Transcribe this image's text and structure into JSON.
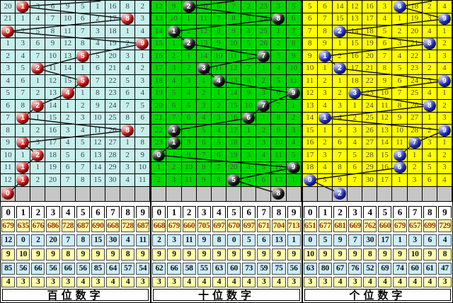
{
  "colors": {
    "panel_cyan": "#c7f0ec",
    "panel_green": "#00d800",
    "panel_yellow": "#ffff00",
    "gray_row": "#c6c6c6",
    "ball_red": "#e11212",
    "ball_black": "#161616",
    "ball_blue": "#2230cf",
    "stat_yellow": "#ffffaa",
    "stat_blue": "#cceeff",
    "stat_row1_text": "#993300",
    "stat_text": "#111111",
    "trend_line": "#151515",
    "grid_line": "#000000"
  },
  "chart_data": {
    "type": "table",
    "description": "Lottery digit trend chart: three panels (hundreds / tens / units digit). Each row shows miss counts per digit 0-9; the drawn digit is shown as a colored ball; a polyline connects drawn digits. Gray row holds the pending ball; below are per-digit statistic rows.",
    "columns": [
      "0",
      "1",
      "2",
      "3",
      "4",
      "5",
      "6",
      "7",
      "8",
      "9"
    ],
    "panels": [
      {
        "label": "百位数字",
        "bg": "panel_cyan",
        "ball": "ball_red",
        "num_color": "#3b4050",
        "rows": [
          {
            "v": [
              "20",
              "1",
              "3",
              "6",
              "9",
              "5",
              "1",
              "16",
              "8",
              "2"
            ],
            "ball": 1
          },
          {
            "v": [
              "21",
              "1",
              "4",
              "7",
              "10",
              "6",
              "2",
              "17",
              "8",
              "3"
            ],
            "ball": 8
          },
          {
            "v": [
              "0",
              "2",
              "5",
              "8",
              "11",
              "7",
              "3",
              "18",
              "1",
              "4"
            ],
            "ball": 0
          },
          {
            "v": [
              "1",
              "3",
              "6",
              "9",
              "12",
              "8",
              "4",
              "19",
              "2",
              "9"
            ],
            "ball": 9
          },
          {
            "v": [
              "2",
              "4",
              "7",
              "10",
              "13",
              "5",
              "5",
              "20",
              "3",
              "1"
            ],
            "ball": 5
          },
          {
            "v": [
              "3",
              "5",
              "2",
              "11",
              "14",
              "1",
              "6",
              "21",
              "4",
              "2"
            ],
            "ball": 2
          },
          {
            "v": [
              "4",
              "6",
              "1",
              "12",
              "15",
              "5",
              "7",
              "22",
              "5",
              "3"
            ],
            "ball": 5
          },
          {
            "v": [
              "5",
              "7",
              "2",
              "13",
              "4",
              "1",
              "8",
              "23",
              "6",
              "4"
            ],
            "ball": 4
          },
          {
            "v": [
              "6",
              "8",
              "2",
              "14",
              "1",
              "2",
              "9",
              "24",
              "7",
              "5"
            ],
            "ball": 2
          },
          {
            "v": [
              "7",
              "1",
              "1",
              "15",
              "2",
              "3",
              "10",
              "25",
              "8",
              "6"
            ],
            "ball": 1
          },
          {
            "v": [
              "8",
              "1",
              "2",
              "16",
              "3",
              "4",
              "11",
              "26",
              "8",
              "7"
            ],
            "ball": 8
          },
          {
            "v": [
              "9",
              "1",
              "3",
              "17",
              "4",
              "5",
              "12",
              "27",
              "1",
              "8"
            ],
            "ball": 1
          },
          {
            "v": [
              "10",
              "1",
              "2",
              "18",
              "5",
              "6",
              "13",
              "28",
              "2",
              "9"
            ],
            "ball": 2
          },
          {
            "v": [
              "11",
              "1",
              "1",
              "19",
              "6",
              "7",
              "14",
              "29",
              "3",
              "10"
            ],
            "ball": 1
          },
          {
            "v": [
              "12",
              "1",
              "2",
              "20",
              "7",
              "8",
              "15",
              "30",
              "4",
              "11"
            ],
            "ball": 1
          }
        ],
        "pending_ball": 0,
        "stats": [
          [
            "679",
            "635",
            "676",
            "686",
            "728",
            "687",
            "690",
            "668",
            "728",
            "687"
          ],
          [
            "12",
            "0",
            "2",
            "20",
            "7",
            "8",
            "15",
            "30",
            "4",
            "11"
          ],
          [
            "9",
            "10",
            "9",
            "9",
            "8",
            "9",
            "9",
            "9",
            "8",
            "9"
          ],
          [
            "85",
            "56",
            "66",
            "56",
            "66",
            "56",
            "85",
            "64",
            "57",
            "54"
          ],
          [
            "4",
            "3",
            "3",
            "3",
            "3",
            "4",
            "3",
            "4",
            "4",
            "3"
          ]
        ]
      },
      {
        "label": "十位数字",
        "bg": "panel_green",
        "ball": "ball_black",
        "num_color": "#3f5a3f",
        "rows": [
          {
            "v": [
              "12",
              "9",
              "2",
              "10",
              "6",
              "7",
              "2",
              "23",
              "3",
              "5"
            ],
            "ball": 2
          },
          {
            "v": [
              "13",
              "10",
              "1",
              "11",
              "7",
              "8",
              "3",
              "24",
              "8",
              "6"
            ],
            "ball": 8
          },
          {
            "v": [
              "14",
              "1",
              "2",
              "12",
              "8",
              "9",
              "4",
              "25",
              "1",
              "7"
            ],
            "ball": 1
          },
          {
            "v": [
              "15",
              "1",
              "2",
              "13",
              "9",
              "10",
              "5",
              "26",
              "2",
              "8"
            ],
            "ball": 2
          },
          {
            "v": [
              "16",
              "2",
              "1",
              "14",
              "10",
              "11",
              "6",
              "7",
              "3",
              "9"
            ],
            "ball": 7
          },
          {
            "v": [
              "17",
              "3",
              "2",
              "3",
              "11",
              "12",
              "7",
              "1",
              "4",
              "10"
            ],
            "ball": 3
          },
          {
            "v": [
              "18",
              "4",
              "3",
              "1",
              "4",
              "13",
              "8",
              "2",
              "5",
              "11"
            ],
            "ball": 4
          },
          {
            "v": [
              "19",
              "5",
              "4",
              "2",
              "1",
              "14",
              "9",
              "3",
              "6",
              "9"
            ],
            "ball": 9
          },
          {
            "v": [
              "20",
              "6",
              "5",
              "3",
              "2",
              "15",
              "10",
              "7",
              "7",
              "1"
            ],
            "ball": 7
          },
          {
            "v": [
              "21",
              "7",
              "6",
              "4",
              "3",
              "16",
              "6",
              "1",
              "8",
              "2"
            ],
            "ball": 6
          },
          {
            "v": [
              "22",
              "1",
              "7",
              "5",
              "4",
              "17",
              "1",
              "2",
              "9",
              "3"
            ],
            "ball": 1
          },
          {
            "v": [
              "23",
              "1",
              "8",
              "6",
              "5",
              "18",
              "2",
              "3",
              "10",
              "4"
            ],
            "ball": 1
          },
          {
            "v": [
              "0",
              "1",
              "9",
              "7",
              "6",
              "19",
              "3",
              "4",
              "11",
              "5"
            ],
            "ball": 0
          },
          {
            "v": [
              "1",
              "2",
              "10",
              "8",
              "7",
              "20",
              "4",
              "5",
              "12",
              "9"
            ],
            "ball": 9
          },
          {
            "v": [
              "2",
              "3",
              "11",
              "9",
              "8",
              "5",
              "5",
              "6",
              "13",
              "1"
            ],
            "ball": 5
          }
        ],
        "pending_ball": 8,
        "stats": [
          [
            "668",
            "679",
            "660",
            "705",
            "697",
            "670",
            "697",
            "671",
            "704",
            "713"
          ],
          [
            "2",
            "3",
            "11",
            "9",
            "8",
            "0",
            "5",
            "6",
            "13",
            "1"
          ],
          [
            "9",
            "9",
            "9",
            "9",
            "9",
            "9",
            "9",
            "9",
            "9",
            "9"
          ],
          [
            "62",
            "66",
            "58",
            "55",
            "63",
            "60",
            "73",
            "59",
            "75",
            "56"
          ],
          [
            "3",
            "3",
            "4",
            "4",
            "4",
            "4",
            "4",
            "3",
            "4",
            "3"
          ]
        ]
      },
      {
        "label": "个位数字",
        "bg": "panel_yellow",
        "ball": "ball_blue",
        "num_color": "#4a4435",
        "rows": [
          {
            "v": [
              "5",
              "6",
              "14",
              "12",
              "16",
              "3",
              "6",
              "18",
              "2",
              "4"
            ],
            "ball": 6
          },
          {
            "v": [
              "6",
              "7",
              "15",
              "13",
              "17",
              "4",
              "1",
              "19",
              "3",
              "9"
            ],
            "ball": 9
          },
          {
            "v": [
              "7",
              "8",
              "2",
              "14",
              "18",
              "5",
              "2",
              "20",
              "4",
              "1"
            ],
            "ball": 2
          },
          {
            "v": [
              "8",
              "9",
              "1",
              "15",
              "19",
              "6",
              "3",
              "21",
              "8",
              "2"
            ],
            "ball": 8
          },
          {
            "v": [
              "9",
              "1",
              "2",
              "16",
              "20",
              "7",
              "4",
              "22",
              "1",
              "3"
            ],
            "ball": 1
          },
          {
            "v": [
              "10",
              "1",
              "2",
              "17",
              "21",
              "8",
              "5",
              "23",
              "2",
              "4"
            ],
            "ball": 2
          },
          {
            "v": [
              "11",
              "2",
              "1",
              "18",
              "22",
              "9",
              "6",
              "24",
              "3",
              "9"
            ],
            "ball": 9
          },
          {
            "v": [
              "12",
              "3",
              "2",
              "3",
              "23",
              "10",
              "7",
              "25",
              "4",
              "1"
            ],
            "ball": 3
          },
          {
            "v": [
              "13",
              "4",
              "3",
              "1",
              "24",
              "11",
              "8",
              "26",
              "8",
              "2"
            ],
            "ball": 8
          },
          {
            "v": [
              "14",
              "1",
              "4",
              "2",
              "25",
              "12",
              "9",
              "27",
              "1",
              "3"
            ],
            "ball": 1
          },
          {
            "v": [
              "15",
              "1",
              "5",
              "3",
              "26",
              "13",
              "10",
              "28",
              "2",
              "9"
            ],
            "ball": 9
          },
          {
            "v": [
              "16",
              "2",
              "6",
              "4",
              "27",
              "14",
              "11",
              "7",
              "3",
              "1"
            ],
            "ball": 7
          },
          {
            "v": [
              "17",
              "3",
              "7",
              "5",
              "28",
              "15",
              "6",
              "1",
              "4",
              "2"
            ],
            "ball": 6
          },
          {
            "v": [
              "18",
              "4",
              "8",
              "6",
              "29",
              "16",
              "6",
              "2",
              "5",
              "3"
            ],
            "ball": 6
          },
          {
            "v": [
              "0",
              "5",
              "9",
              "7",
              "30",
              "17",
              "1",
              "3",
              "6",
              "4"
            ],
            "ball": 0
          }
        ],
        "pending_ball": 2,
        "stats": [
          [
            "651",
            "677",
            "681",
            "669",
            "762",
            "660",
            "679",
            "657",
            "699",
            "729"
          ],
          [
            "0",
            "5",
            "9",
            "7",
            "30",
            "17",
            "1",
            "3",
            "6",
            "4"
          ],
          [
            "10",
            "9",
            "9",
            "9",
            "8",
            "9",
            "9",
            "10",
            "9",
            "8"
          ],
          [
            "63",
            "80",
            "67",
            "76",
            "52",
            "69",
            "74",
            "60",
            "61",
            "47"
          ],
          [
            "3",
            "3",
            "4",
            "3",
            "4",
            "4",
            "4",
            "4",
            "4",
            "3"
          ]
        ]
      }
    ],
    "stats_row_bg_keys": [
      "stat_yellow",
      "stat_blue",
      "stat_yellow",
      "stat_blue",
      "stat_yellow"
    ],
    "stats_row_heights": [
      18,
      17,
      17,
      17,
      15
    ]
  }
}
